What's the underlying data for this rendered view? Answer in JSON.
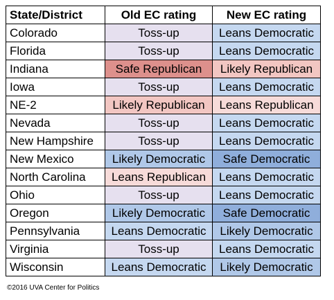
{
  "table": {
    "headers": [
      "State/District",
      "Old EC rating",
      "New EC rating"
    ],
    "rows": [
      {
        "state": "Colorado",
        "old": "Toss-up",
        "old_class": "r-tossup",
        "new": "Leans Democratic",
        "new_class": "r-leans-d"
      },
      {
        "state": "Florida",
        "old": "Toss-up",
        "old_class": "r-tossup",
        "new": "Leans Democratic",
        "new_class": "r-leans-d"
      },
      {
        "state": "Indiana",
        "old": "Safe Republican",
        "old_class": "r-safe-r",
        "new": "Likely Republican",
        "new_class": "r-likely-r"
      },
      {
        "state": "Iowa",
        "old": "Toss-up",
        "old_class": "r-tossup",
        "new": "Leans Democratic",
        "new_class": "r-leans-d"
      },
      {
        "state": "NE-2",
        "old": "Likely Republican",
        "old_class": "r-likely-r",
        "new": "Leans Republican",
        "new_class": "r-leans-r"
      },
      {
        "state": "Nevada",
        "old": "Toss-up",
        "old_class": "r-tossup",
        "new": "Leans Democratic",
        "new_class": "r-leans-d"
      },
      {
        "state": "New Hampshire",
        "old": "Toss-up",
        "old_class": "r-tossup",
        "new": "Leans Democratic",
        "new_class": "r-leans-d"
      },
      {
        "state": "New Mexico",
        "old": "Likely Democratic",
        "old_class": "r-likely-d",
        "new": "Safe Democratic",
        "new_class": "r-safe-d"
      },
      {
        "state": "North Carolina",
        "old": "Leans Republican",
        "old_class": "r-leans-r",
        "new": "Leans Democratic",
        "new_class": "r-leans-d"
      },
      {
        "state": "Ohio",
        "old": "Toss-up",
        "old_class": "r-tossup",
        "new": "Leans Democratic",
        "new_class": "r-leans-d"
      },
      {
        "state": "Oregon",
        "old": "Likely Democratic",
        "old_class": "r-likely-d",
        "new": "Safe Democratic",
        "new_class": "r-safe-d"
      },
      {
        "state": "Pennsylvania",
        "old": "Leans Democratic",
        "old_class": "r-leans-d",
        "new": "Likely Democratic",
        "new_class": "r-likely-d"
      },
      {
        "state": "Virginia",
        "old": "Toss-up",
        "old_class": "r-tossup",
        "new": "Leans Democratic",
        "new_class": "r-leans-d"
      },
      {
        "state": "Wisconsin",
        "old": "Leans Democratic",
        "old_class": "r-leans-d",
        "new": "Likely Democratic",
        "new_class": "r-likely-d"
      }
    ]
  },
  "credit": "©2016 UVA Center for Politics",
  "colors": {
    "toss_up": "#e6e0ef",
    "leans_democratic": "#c5d8f0",
    "likely_democratic": "#b0c8e8",
    "safe_democratic": "#8faedb",
    "leans_republican": "#f7dbd9",
    "likely_republican": "#f2c6c2",
    "safe_republican": "#dd908c"
  }
}
